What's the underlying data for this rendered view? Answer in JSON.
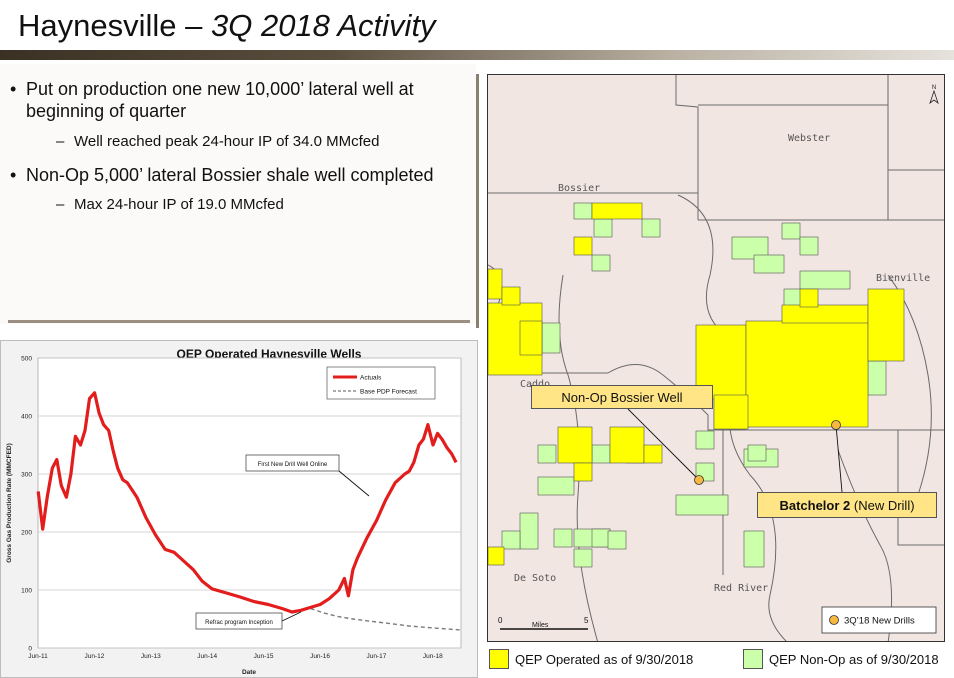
{
  "slide": {
    "title_main": "Haynesville – ",
    "title_italic": "3Q 2018 Activity"
  },
  "bullets": [
    {
      "text": "Put on production one new 10,000’ lateral well at beginning of quarter",
      "sub": "Well reached peak 24-hour IP of 34.0 MMcfed"
    },
    {
      "text": "Non-Op 5,000’ lateral Bossier shale well completed",
      "sub": "Max 24-hour IP of 19.0 MMcfed"
    }
  ],
  "chart_data": {
    "type": "line",
    "title": "QEP Operated Haynesville Wells",
    "xlabel": "Date",
    "ylabel": "Gross Gas Production Rate (MMCFED)",
    "ylim": [
      0,
      500
    ],
    "yticks": [
      0,
      100,
      200,
      300,
      400,
      500
    ],
    "xlim": [
      2011.417,
      2018.917
    ],
    "xticks": [
      {
        "v": 2011.417,
        "label": "Jun-11"
      },
      {
        "v": 2012.417,
        "label": "Jun-12"
      },
      {
        "v": 2013.417,
        "label": "Jun-13"
      },
      {
        "v": 2014.417,
        "label": "Jun-14"
      },
      {
        "v": 2015.417,
        "label": "Jun-15"
      },
      {
        "v": 2016.417,
        "label": "Jun-16"
      },
      {
        "v": 2017.417,
        "label": "Jun-17"
      },
      {
        "v": 2018.417,
        "label": "Jun-18"
      }
    ],
    "legend": {
      "placement": "top-right",
      "entries": [
        "Actuals",
        "Base PDP Forecast"
      ]
    },
    "colors": {
      "actuals": "#e31c1c",
      "forecast": "#7a7a7a"
    },
    "series": [
      {
        "name": "Actuals",
        "style": "solid",
        "x": [
          2011.42,
          2011.5,
          2011.58,
          2011.67,
          2011.75,
          2011.83,
          2011.92,
          2012.0,
          2012.08,
          2012.17,
          2012.25,
          2012.33,
          2012.42,
          2012.5,
          2012.58,
          2012.67,
          2012.75,
          2012.83,
          2012.92,
          2013.0,
          2013.17,
          2013.33,
          2013.5,
          2013.67,
          2013.83,
          2014.0,
          2014.17,
          2014.33,
          2014.5,
          2014.75,
          2015.0,
          2015.25,
          2015.5,
          2015.75,
          2015.92,
          2016.08,
          2016.25,
          2016.42,
          2016.58,
          2016.75,
          2016.85,
          2016.92,
          2017.0,
          2017.08,
          2017.25,
          2017.42,
          2017.58,
          2017.75,
          2017.92,
          2018.0,
          2018.08,
          2018.17,
          2018.25,
          2018.33,
          2018.42,
          2018.5,
          2018.58,
          2018.67,
          2018.75,
          2018.83
        ],
        "y": [
          270,
          205,
          260,
          310,
          325,
          280,
          260,
          300,
          365,
          350,
          375,
          430,
          440,
          405,
          385,
          375,
          340,
          310,
          290,
          285,
          260,
          225,
          195,
          170,
          165,
          150,
          135,
          115,
          102,
          95,
          88,
          80,
          75,
          68,
          62,
          65,
          70,
          75,
          85,
          100,
          120,
          90,
          135,
          155,
          190,
          220,
          255,
          285,
          300,
          305,
          320,
          350,
          360,
          385,
          350,
          370,
          360,
          345,
          335,
          320
        ]
      },
      {
        "name": "Base PDP Forecast",
        "style": "dashed",
        "x": [
          2016.25,
          2016.5,
          2016.75,
          2017.0,
          2017.5,
          2018.0,
          2018.5,
          2018.92
        ],
        "y": [
          68,
          60,
          54,
          50,
          44,
          38,
          34,
          31
        ]
      }
    ],
    "annotations": [
      {
        "text": "First New Drill Well Online"
      },
      {
        "text": "Refrac program Inception"
      }
    ]
  },
  "map": {
    "north_label": "N",
    "parishes": [
      "Webster",
      "Bossier",
      "Bienville",
      "Caddo",
      "De Soto",
      "Red River"
    ],
    "callouts": {
      "nonop": "Non-Op Bossier Well",
      "batchelor_bold": "Batchelor 2",
      "batchelor_rest": " (New Drill)"
    },
    "scale": {
      "left": "0",
      "mid": "Miles",
      "right": "5"
    },
    "inset_legend": "3Q’18 New Drills",
    "colors": {
      "operated": "#ffff00",
      "nonop": "#ccffaa",
      "callout": "#ffe585",
      "marker": "#f5b840",
      "land": "#f2e6e3"
    }
  },
  "legend": {
    "operated": "QEP Operated as of 9/30/2018",
    "nonop": "QEP Non-Op as of 9/30/2018"
  }
}
